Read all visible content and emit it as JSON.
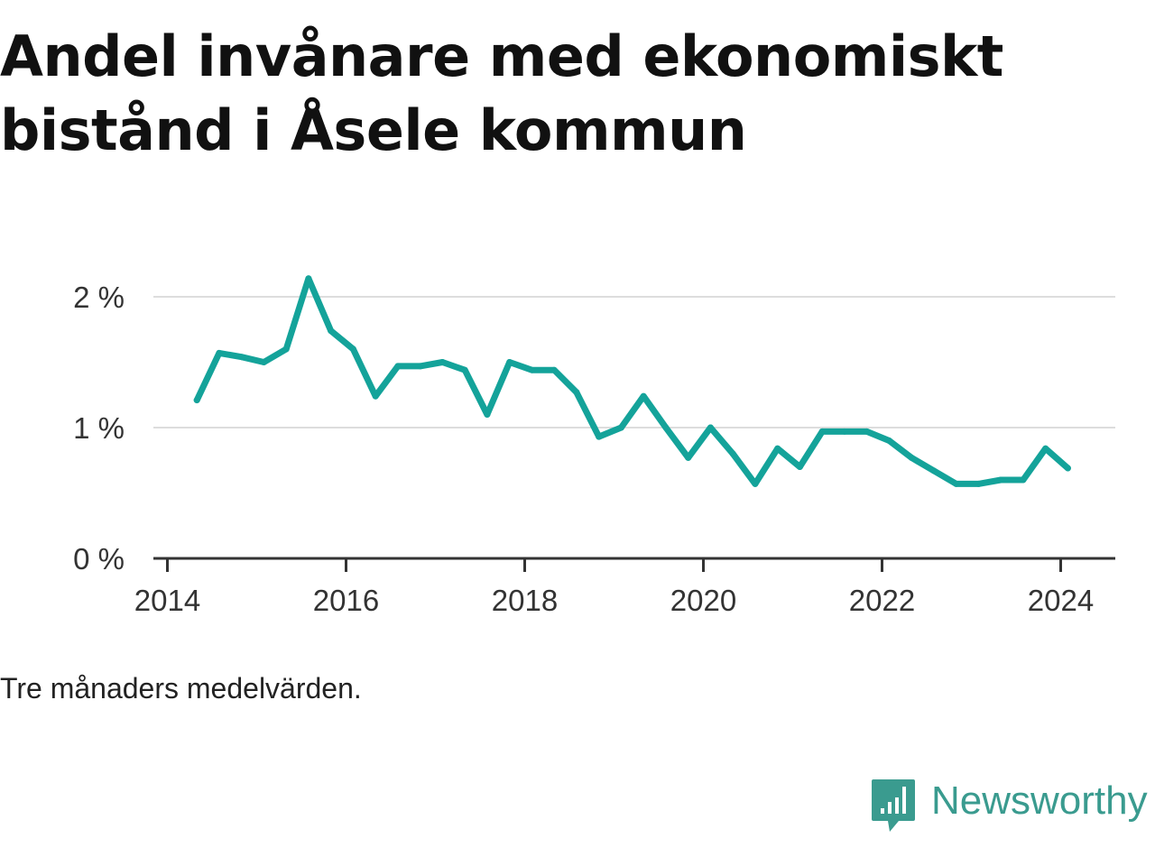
{
  "title": "Andel invånare med ekonomiskt bistånd i Åsele kommun",
  "note": "Tre månaders medelvärden.",
  "brand": {
    "name": "Newsworthy",
    "icon": "newsworthy-logo-icon",
    "color": "#3a9b8f"
  },
  "chart_data": {
    "type": "line",
    "title": "Andel invånare med ekonomiskt bistånd i Åsele kommun",
    "xlabel": "",
    "ylabel": "",
    "xlim": [
      2014.0,
      2024.6
    ],
    "ylim": [
      0,
      2.2
    ],
    "x_ticks": [
      2014,
      2016,
      2018,
      2020,
      2022,
      2024
    ],
    "x_tick_labels": [
      "2014",
      "2016",
      "2018",
      "2020",
      "2022",
      "2024"
    ],
    "y_ticks": [
      0,
      1,
      2
    ],
    "y_tick_labels": [
      "0 %",
      "1 %",
      "2 %"
    ],
    "grid": true,
    "line_color": "#14a39a",
    "series": [
      {
        "x": [
          2014.33,
          2014.58,
          2014.83,
          2015.08,
          2015.33,
          2015.58,
          2015.83,
          2016.08,
          2016.33,
          2016.58,
          2016.83,
          2017.08,
          2017.33,
          2017.58,
          2017.83,
          2018.08,
          2018.33,
          2018.58,
          2018.83,
          2019.08,
          2019.33,
          2019.58,
          2019.83,
          2020.08,
          2020.33,
          2020.58,
          2020.83,
          2021.08,
          2021.33,
          2021.58,
          2021.83,
          2022.08,
          2022.33,
          2022.58,
          2022.83,
          2023.08,
          2023.33,
          2023.58,
          2023.83,
          2024.08
        ],
        "values": [
          1.21,
          1.57,
          1.54,
          1.5,
          1.6,
          2.14,
          1.74,
          1.6,
          1.24,
          1.47,
          1.47,
          1.5,
          1.44,
          1.1,
          1.5,
          1.44,
          1.44,
          1.27,
          0.93,
          1.0,
          1.24,
          1.0,
          0.77,
          1.0,
          0.8,
          0.57,
          0.84,
          0.7,
          0.97,
          0.97,
          0.97,
          0.9,
          0.77,
          0.67,
          0.57,
          0.57,
          0.6,
          0.6,
          0.84,
          0.69
        ]
      }
    ]
  }
}
